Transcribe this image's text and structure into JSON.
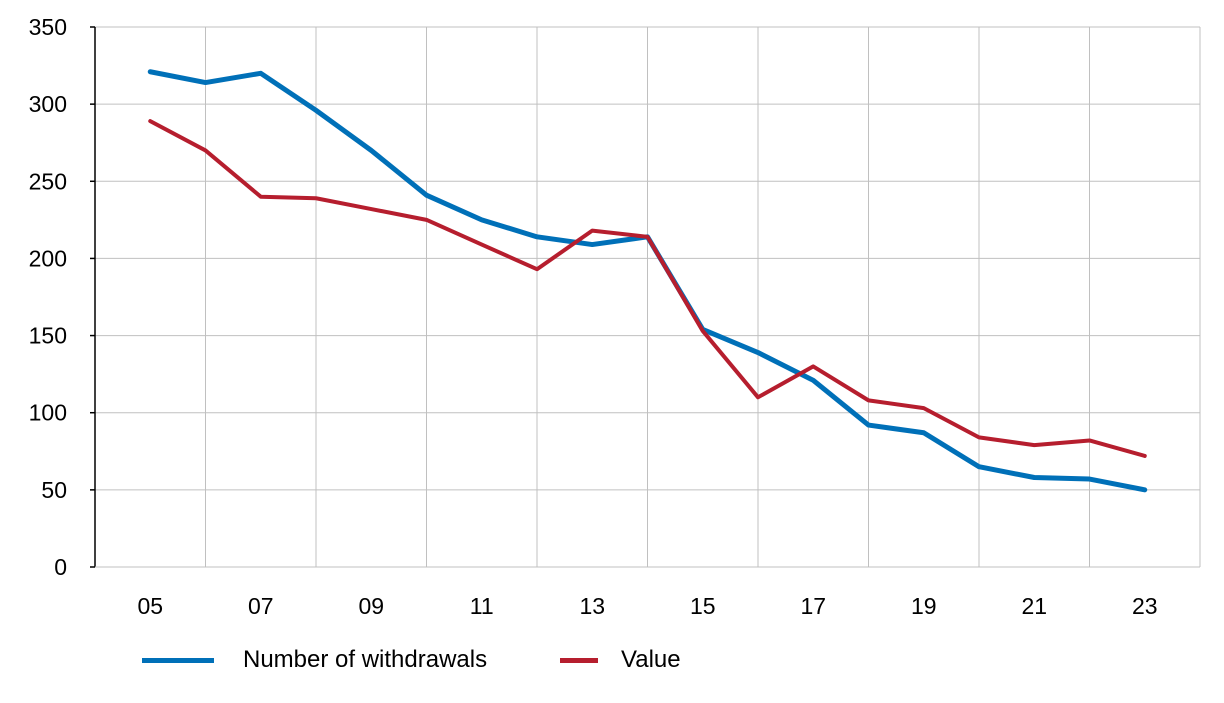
{
  "chart_data": {
    "type": "line",
    "title": "",
    "xlabel": "",
    "ylabel": "",
    "x": [
      "05",
      "06",
      "07",
      "08",
      "09",
      "10",
      "11",
      "12",
      "13",
      "14",
      "15",
      "16",
      "17",
      "18",
      "19",
      "20",
      "21",
      "22",
      "23"
    ],
    "x_tick_labels": [
      "05",
      "07",
      "09",
      "11",
      "13",
      "15",
      "17",
      "19",
      "21",
      "23"
    ],
    "y_ticks": [
      0,
      50,
      100,
      150,
      200,
      250,
      300,
      350
    ],
    "ylim": [
      0,
      350
    ],
    "grid": true,
    "legend_position": "bottom",
    "series": [
      {
        "name": "Number of withdrawals",
        "color": "#0070B8",
        "values": [
          321,
          314,
          320,
          296,
          270,
          241,
          225,
          214,
          209,
          214,
          154,
          139,
          121,
          92,
          87,
          65,
          58,
          57,
          50
        ]
      },
      {
        "name": "Value",
        "color": "#B61E2E",
        "values": [
          289,
          270,
          240,
          239,
          232,
          225,
          209,
          193,
          218,
          214,
          153,
          110,
          130,
          108,
          103,
          84,
          79,
          82,
          72
        ]
      }
    ]
  }
}
